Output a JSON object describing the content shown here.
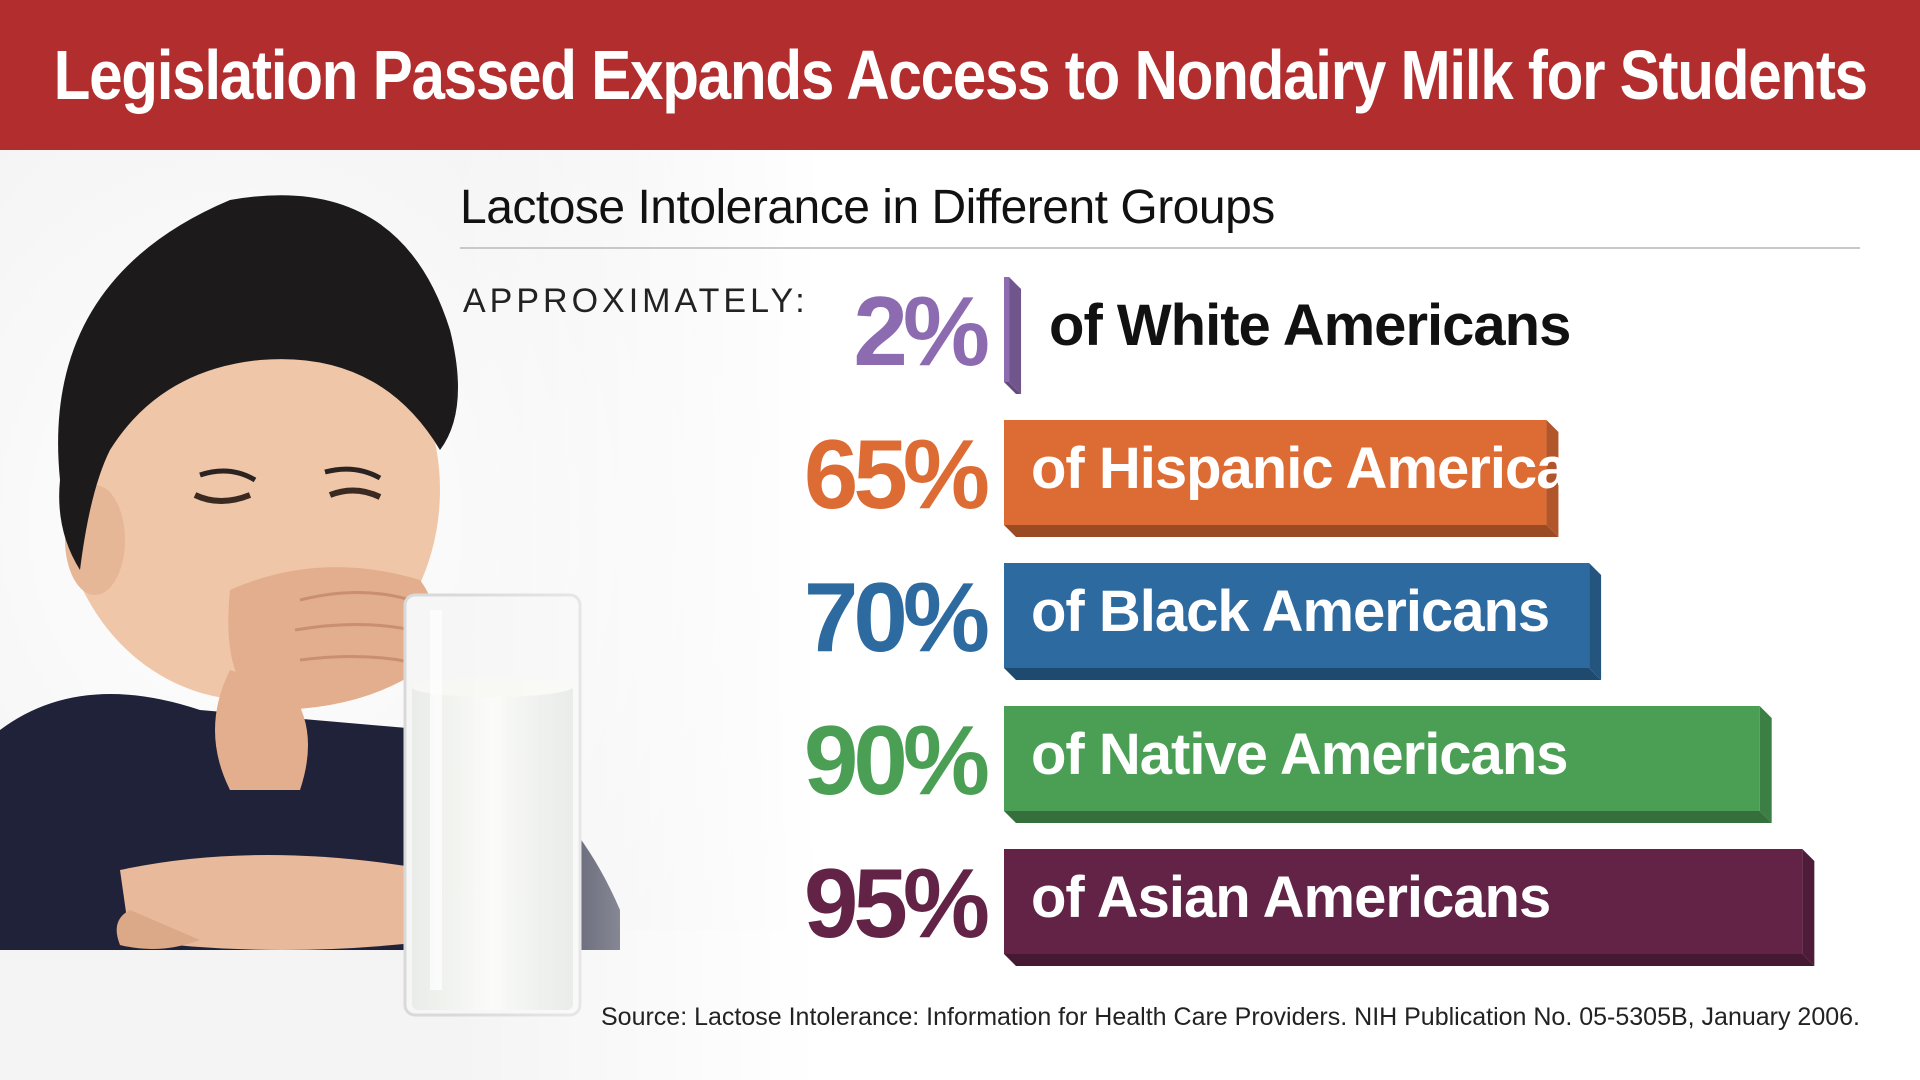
{
  "header": {
    "title": "Legislation Passed Expands Access to Nondairy Milk for Students"
  },
  "chart_data": {
    "type": "bar",
    "title": "Lactose Intolerance in Different Groups",
    "subtitle": "APPROXIMATELY:",
    "categories": [
      "of White Americans",
      "of Hispanic Americans",
      "of Black Americans",
      "of Native Americans",
      "of Asian Americans"
    ],
    "values": [
      2,
      65,
      70,
      90,
      95
    ],
    "value_labels": [
      "2%",
      "65%",
      "70%",
      "90%",
      "95%"
    ],
    "colors": [
      "#8d6bb1",
      "#dd6b34",
      "#2d6a9f",
      "#4b9f55",
      "#622346"
    ],
    "ylim": [
      0,
      100
    ],
    "unit": "%"
  },
  "footer": {
    "source": "Source: Lactose Intolerance: Information for Health Care Providers. NIH Publication No. 05-5305B, January 2006."
  },
  "photo": {
    "description_icon": "child-with-milk-illustration"
  }
}
